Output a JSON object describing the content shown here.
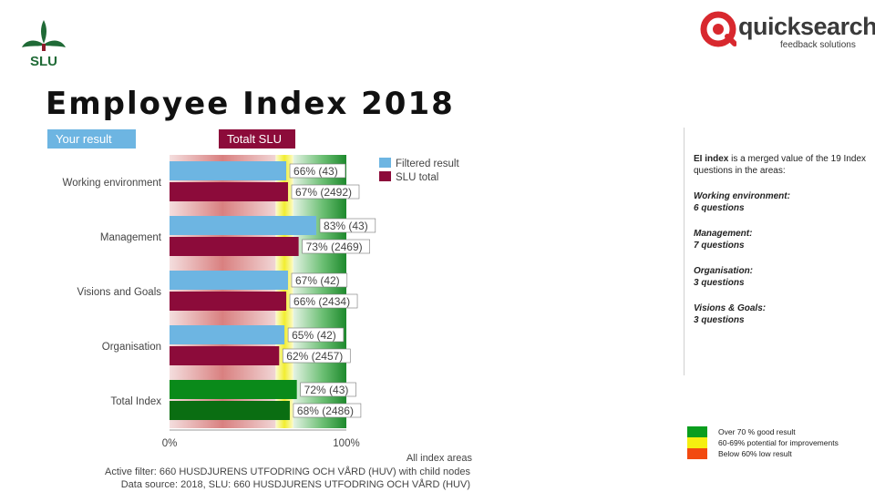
{
  "header": {
    "org_logo": "SLU",
    "vendor_name": "quicksearch",
    "vendor_tagline": "feedback solutions",
    "title": "Employee Index 2018",
    "tag_your_result": "Your result",
    "tag_total": "Totalt SLU"
  },
  "colors": {
    "filtered": "#6db5e2",
    "total": "#8c0b3a",
    "index_filtered": "#0a8a1a",
    "index_total": "#0a6e12",
    "zone_red": "#d55a5a",
    "zone_yellow": "#f2ef3a",
    "zone_green": "#2c9a3c"
  },
  "chart_data": {
    "type": "bar",
    "orientation": "horizontal",
    "categories": [
      "Working environment",
      "Management",
      "Visions and Goals",
      "Organisation",
      "Total Index"
    ],
    "series": [
      {
        "name": "Filtered result",
        "values": [
          66,
          83,
          67,
          65,
          72
        ],
        "labels": [
          "66% (43)",
          "83% (43)",
          "67% (42)",
          "65% (42)",
          "72% (43)"
        ]
      },
      {
        "name": "SLU total",
        "values": [
          67,
          73,
          66,
          62,
          68
        ],
        "labels": [
          "67% (2492)",
          "73% (2469)",
          "66% (2434)",
          "62% (2457)",
          "68% (2486)"
        ]
      }
    ],
    "xlim": [
      0,
      100
    ],
    "x_ticks": [
      "0%",
      "100%"
    ],
    "zones": [
      {
        "from": 0,
        "to": 60,
        "color": "red"
      },
      {
        "from": 60,
        "to": 70,
        "color": "yellow"
      },
      {
        "from": 70,
        "to": 100,
        "color": "green"
      }
    ],
    "legend_position": "top-right",
    "footer": {
      "areas": "All index areas",
      "filter": "Active filter: 660 HUSDJURENS UTFODRING OCH VÅRD (HUV)  with child nodes",
      "source": "Data source: 2018, SLU: 660 HUSDJURENS UTFODRING OCH VÅRD (HUV)"
    }
  },
  "info": {
    "lead_bold": "EI index",
    "lead_rest": " is a merged value of the 19 Index questions in the areas:",
    "sections": [
      {
        "line1": "Working environment:",
        "line2": "6 questions"
      },
      {
        "line1": "Management:",
        "line2": "7 questions"
      },
      {
        "line1": "Organisation:",
        "line2": "3 questions"
      },
      {
        "line1": "Visions & Goals:",
        "line2": "3 questions"
      }
    ]
  },
  "color_legend": [
    {
      "color": "#0a9e1e",
      "label": "Over 70 % good result"
    },
    {
      "color": "#f5ef10",
      "label": "60-69% potential for improvements"
    },
    {
      "color": "#f24a10",
      "label": "Below 60% low result"
    }
  ]
}
